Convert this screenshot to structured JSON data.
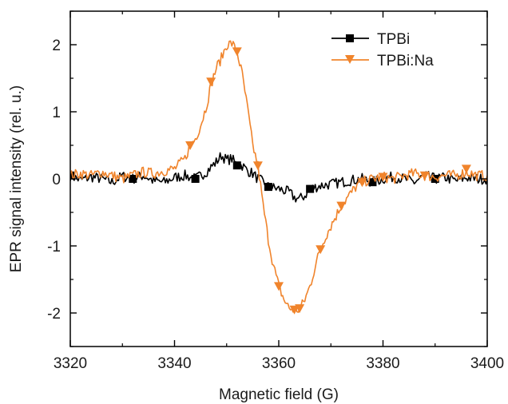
{
  "chart_data": {
    "type": "line",
    "xlabel": "Magnetic field (G)",
    "ylabel": "EPR signal intensity (rel. u.)",
    "xlim": [
      3320,
      3400
    ],
    "ylim": [
      -2.5,
      2.5
    ],
    "x_ticks": [
      3320,
      3340,
      3360,
      3380,
      3400
    ],
    "y_ticks": [
      -2,
      -1,
      0,
      1,
      2
    ],
    "x_tick_labels": [
      "3320",
      "3340",
      "3360",
      "3380",
      "3400"
    ],
    "y_tick_labels": [
      "-2",
      "-1",
      "0",
      "1",
      "2"
    ],
    "grid": false,
    "legend_position": "top-right",
    "series": [
      {
        "name": "TPBi",
        "color": "#000000",
        "marker": "square",
        "points": [
          [
            3320,
            0.05
          ],
          [
            3322,
            -0.02
          ],
          [
            3324,
            0.03
          ],
          [
            3326,
            0.0
          ],
          [
            3328,
            -0.05
          ],
          [
            3330,
            0.04
          ],
          [
            3332,
            0.0
          ],
          [
            3334,
            0.05
          ],
          [
            3336,
            -0.03
          ],
          [
            3338,
            -0.05
          ],
          [
            3340,
            0.02
          ],
          [
            3342,
            0.05
          ],
          [
            3344,
            0.0
          ],
          [
            3346,
            0.1
          ],
          [
            3348,
            0.25
          ],
          [
            3349,
            0.35
          ],
          [
            3350,
            0.28
          ],
          [
            3351,
            0.3
          ],
          [
            3352,
            0.2
          ],
          [
            3353,
            0.2
          ],
          [
            3354,
            0.12
          ],
          [
            3355,
            0.08
          ],
          [
            3356,
            0.0
          ],
          [
            3357,
            -0.05
          ],
          [
            3358,
            -0.12
          ],
          [
            3360,
            -0.15
          ],
          [
            3362,
            -0.2
          ],
          [
            3363,
            -0.28
          ],
          [
            3364,
            -0.3
          ],
          [
            3365,
            -0.25
          ],
          [
            3366,
            -0.15
          ],
          [
            3368,
            -0.1
          ],
          [
            3370,
            -0.08
          ],
          [
            3372,
            -0.05
          ],
          [
            3374,
            -0.02
          ],
          [
            3376,
            0.0
          ],
          [
            3378,
            -0.05
          ],
          [
            3380,
            0.0
          ],
          [
            3382,
            0.03
          ],
          [
            3384,
            0.0
          ],
          [
            3386,
            -0.05
          ],
          [
            3388,
            0.05
          ],
          [
            3390,
            0.0
          ],
          [
            3392,
            0.02
          ],
          [
            3394,
            -0.03
          ],
          [
            3396,
            0.02
          ],
          [
            3398,
            0.0
          ],
          [
            3400,
            0.0
          ]
        ]
      },
      {
        "name": "TPBi:Na",
        "color": "#f0842c",
        "marker": "triangle-down",
        "points": [
          [
            3320,
            0.05
          ],
          [
            3322,
            0.08
          ],
          [
            3324,
            0.05
          ],
          [
            3326,
            0.1
          ],
          [
            3328,
            0.05
          ],
          [
            3330,
            0.0
          ],
          [
            3332,
            0.05
          ],
          [
            3334,
            0.1
          ],
          [
            3336,
            0.08
          ],
          [
            3338,
            0.12
          ],
          [
            3340,
            0.15
          ],
          [
            3342,
            0.3
          ],
          [
            3343,
            0.5
          ],
          [
            3344,
            0.6
          ],
          [
            3345,
            0.8
          ],
          [
            3346,
            1.05
          ],
          [
            3347,
            1.4
          ],
          [
            3348,
            1.65
          ],
          [
            3349,
            1.8
          ],
          [
            3350,
            2.0
          ],
          [
            3351,
            2.02
          ],
          [
            3352,
            1.9
          ],
          [
            3353,
            1.55
          ],
          [
            3354,
            1.05
          ],
          [
            3355,
            0.5
          ],
          [
            3356,
            0.2
          ],
          [
            3357,
            -0.4
          ],
          [
            3358,
            -0.9
          ],
          [
            3359,
            -1.3
          ],
          [
            3360,
            -1.6
          ],
          [
            3361,
            -1.8
          ],
          [
            3362,
            -1.93
          ],
          [
            3363,
            -1.95
          ],
          [
            3364,
            -1.95
          ],
          [
            3365,
            -1.8
          ],
          [
            3366,
            -1.6
          ],
          [
            3367,
            -1.3
          ],
          [
            3368,
            -1.05
          ],
          [
            3369,
            -0.85
          ],
          [
            3370,
            -0.7
          ],
          [
            3371,
            -0.55
          ],
          [
            3372,
            -0.4
          ],
          [
            3373,
            -0.3
          ],
          [
            3374,
            -0.2
          ],
          [
            3375,
            -0.1
          ],
          [
            3376,
            -0.05
          ],
          [
            3378,
            0.0
          ],
          [
            3380,
            0.03
          ],
          [
            3382,
            0.0
          ],
          [
            3384,
            0.05
          ],
          [
            3386,
            0.08
          ],
          [
            3388,
            0.05
          ],
          [
            3390,
            0.03
          ],
          [
            3392,
            0.05
          ],
          [
            3394,
            0.05
          ],
          [
            3396,
            0.1
          ],
          [
            3398,
            0.05
          ],
          [
            3400,
            0.05
          ]
        ],
        "marker_points": [
          [
            3343,
            0.5
          ],
          [
            3347,
            1.45
          ],
          [
            3352,
            1.9
          ],
          [
            3356,
            0.2
          ],
          [
            3360,
            -1.6
          ],
          [
            3363,
            -1.95
          ],
          [
            3364,
            -1.93
          ],
          [
            3368,
            -1.05
          ],
          [
            3372,
            -0.4
          ],
          [
            3376,
            -0.05
          ],
          [
            3380,
            0.03
          ],
          [
            3388,
            0.05
          ],
          [
            3396,
            0.15
          ]
        ]
      }
    ]
  }
}
